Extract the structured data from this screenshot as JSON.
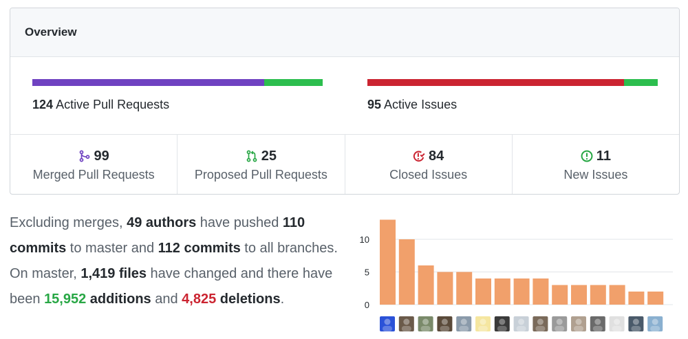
{
  "overview": {
    "title": "Overview",
    "pull_requests": {
      "count": "124",
      "label": "Active Pull Requests",
      "merged_fraction": 0.798,
      "colors": {
        "merged": "#6f42c1",
        "open": "#2cbe4e"
      }
    },
    "issues": {
      "count": "95",
      "label": "Active Issues",
      "closed_fraction": 0.884,
      "colors": {
        "closed": "#cb2431",
        "open": "#2cbe4e"
      }
    },
    "stats": [
      {
        "icon": "git-merge-icon",
        "number": "99",
        "label": "Merged Pull Requests",
        "color": "#6f42c1"
      },
      {
        "icon": "git-pull-request-icon",
        "number": "25",
        "label": "Proposed Pull Requests",
        "color": "#28a745"
      },
      {
        "icon": "issue-closed-icon",
        "number": "84",
        "label": "Closed Issues",
        "color": "#cb2431"
      },
      {
        "icon": "issue-opened-icon",
        "number": "11",
        "label": "New Issues",
        "color": "#28a745"
      }
    ]
  },
  "summary": {
    "t1": "Excluding merges, ",
    "authors": "49 authors",
    "t2": " have pushed ",
    "commits_master": "110 commits",
    "t3": " to master and ",
    "commits_all": "112 commits",
    "t4": " to all branches. On master, ",
    "files": "1,419 files",
    "t5": " have changed and there have been ",
    "additions_num": "15,952",
    "additions_word": " additions",
    "t6": " and ",
    "deletions_num": "4,825",
    "deletions_word": " deletions",
    "t7": "."
  },
  "chart_data": {
    "type": "bar",
    "y_ticks": [
      "0",
      "5",
      "10"
    ],
    "ylim": [
      0,
      14
    ],
    "values": [
      13,
      10,
      6,
      5,
      5,
      4,
      4,
      4,
      4,
      3,
      3,
      3,
      3,
      2,
      2
    ],
    "bar_color": "#f1a06b",
    "grid": true
  }
}
